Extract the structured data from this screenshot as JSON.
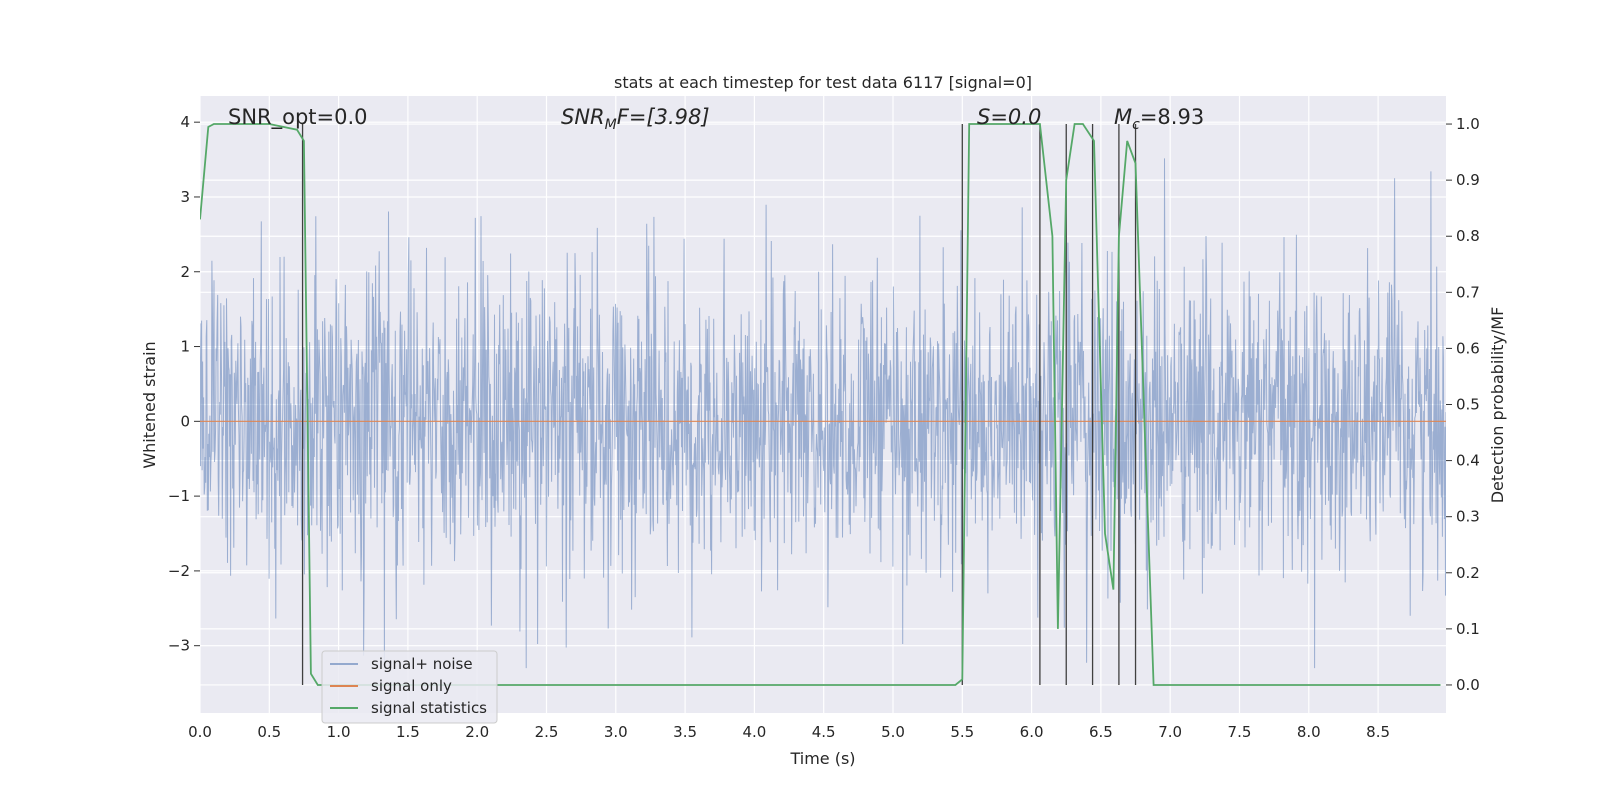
{
  "chart_data": {
    "type": "line",
    "title": "stats at each timestep for test data 6117 [signal=0]",
    "xlabel": "Time (s)",
    "ylabel_left": "Whitened strain",
    "ylabel_right": "Detection probability/MF",
    "xlim": [
      0.0,
      8.99
    ],
    "ylim_left": [
      -3.9,
      4.35
    ],
    "ylim_right": [
      -0.05,
      1.05
    ],
    "xticks": [
      "0.0",
      "0.5",
      "1.0",
      "1.5",
      "2.0",
      "2.5",
      "3.0",
      "3.5",
      "4.0",
      "4.5",
      "5.0",
      "5.5",
      "6.0",
      "6.5",
      "7.0",
      "7.5",
      "8.0",
      "8.5"
    ],
    "yticks_left": [
      "4",
      "3",
      "2",
      "1",
      "0",
      "−1",
      "−2",
      "−3"
    ],
    "yticks_right": [
      "1.0",
      "0.9",
      "0.8",
      "0.7",
      "0.6",
      "0.5",
      "0.4",
      "0.3",
      "0.2",
      "0.1",
      "0.0"
    ],
    "grid": true,
    "legend_position": "lower-left",
    "annotations": {
      "snr_opt": "SNR_opt=0.0",
      "snr_mf_base": "SNR",
      "snr_mf_sub": "M",
      "snr_mf_rest": "F=[3.98]",
      "s_stat": "S=0.0",
      "mc_base": "M",
      "mc_sub": "c",
      "mc_rest": "=8.93"
    },
    "colors": {
      "background": "#eaeaf2",
      "grid": "#ffffff",
      "noise": "#4c72b0",
      "signal": "#dd8452",
      "statistics": "#55a868",
      "vlines": "#404040"
    },
    "series": [
      {
        "name": "signal+ noise",
        "axis": "left",
        "style": "dense noisy strain trace between approx -3.3 and 3.8",
        "y_range": [
          -3.3,
          3.8
        ]
      },
      {
        "name": "signal only",
        "axis": "left",
        "x": [
          0.0,
          8.99
        ],
        "values": [
          0.0,
          0.0
        ]
      },
      {
        "name": "signal statistics",
        "axis": "right",
        "x": [
          0.0,
          0.06,
          0.1,
          0.5,
          0.7,
          0.75,
          0.8,
          0.85,
          5.45,
          5.5,
          5.55,
          6.06,
          6.15,
          6.19,
          6.25,
          6.31,
          6.37,
          6.45,
          6.53,
          6.59,
          6.63,
          6.69,
          6.75,
          6.88,
          8.95
        ],
        "values": [
          0.83,
          0.995,
          1.0,
          1.0,
          0.99,
          0.97,
          0.02,
          0.0,
          0.0,
          0.01,
          1.0,
          1.0,
          0.8,
          0.1,
          0.9,
          1.0,
          1.0,
          0.97,
          0.27,
          0.17,
          0.8,
          0.97,
          0.93,
          0.0,
          0.0
        ]
      }
    ],
    "vertical_lines_x": [
      0.74,
      5.5,
      6.06,
      6.25,
      6.44,
      6.63,
      6.75
    ]
  }
}
